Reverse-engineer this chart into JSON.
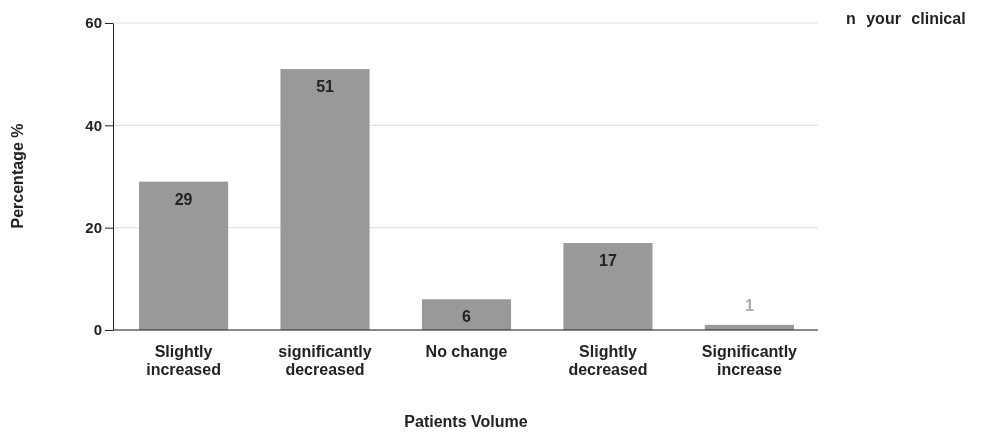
{
  "chart_data": {
    "type": "bar",
    "xlabel": "Patients Volume",
    "ylabel": "Percentage %",
    "categories": [
      "Slightly increased",
      "significantly decreased",
      "No change",
      "Slightly decreased",
      "Significantly increase"
    ],
    "values": [
      29,
      51,
      6,
      17,
      1
    ],
    "color": "#999999",
    "ylim": [
      0,
      60
    ],
    "yticks": [
      0,
      20,
      40,
      60
    ],
    "grid": "y",
    "data_labels": true,
    "annotations": [
      "n your clinical"
    ]
  }
}
